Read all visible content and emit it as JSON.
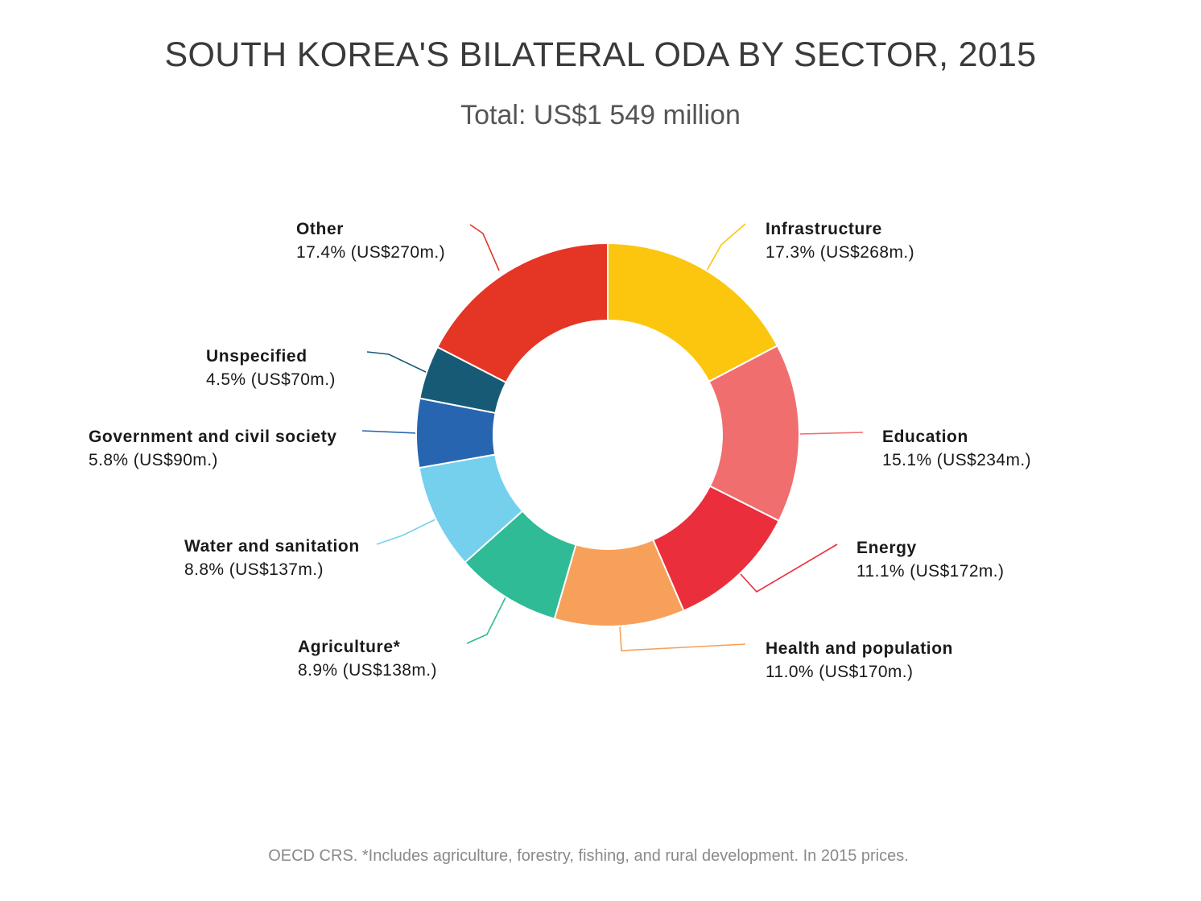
{
  "chart_data": {
    "type": "pie",
    "variant": "donut",
    "title": "SOUTH KOREA'S BILATERAL ODA BY SECTOR, 2015",
    "subtitle": "Total: US$1 549 million",
    "source": "OECD CRS. *Includes agriculture, forestry, fishing, and rural development. In 2015 prices.",
    "segments": [
      {
        "name": "Infrastructure",
        "percent": 17.3,
        "value": 268,
        "value_label": "17.3% (US$268m.)",
        "color": "#FCC60E"
      },
      {
        "name": "Education",
        "percent": 15.1,
        "value": 234,
        "value_label": "15.1% (US$234m.)",
        "color": "#F06E6E"
      },
      {
        "name": "Energy",
        "percent": 11.1,
        "value": 172,
        "value_label": "11.1% (US$172m.)",
        "color": "#EA2E3C"
      },
      {
        "name": "Health and population",
        "percent": 11.0,
        "value": 170,
        "value_label": "11.0% (US$170m.)",
        "color": "#F7A05A"
      },
      {
        "name": "Agriculture*",
        "percent": 8.9,
        "value": 138,
        "value_label": "8.9% (US$138m.)",
        "color": "#2EBB95"
      },
      {
        "name": "Water and sanitation",
        "percent": 8.8,
        "value": 137,
        "value_label": "8.8% (US$137m.)",
        "color": "#74D0EC"
      },
      {
        "name": "Government and civil society",
        "percent": 5.8,
        "value": 90,
        "value_label": "5.8% (US$90m.)",
        "color": "#2765B0"
      },
      {
        "name": "Unspecified",
        "percent": 4.5,
        "value": 70,
        "value_label": "4.5% (US$70m.)",
        "color": "#175A75"
      },
      {
        "name": "Other",
        "percent": 17.4,
        "value": 270,
        "value_label": "17.4% (US$270m.)",
        "color": "#E53525"
      }
    ]
  }
}
